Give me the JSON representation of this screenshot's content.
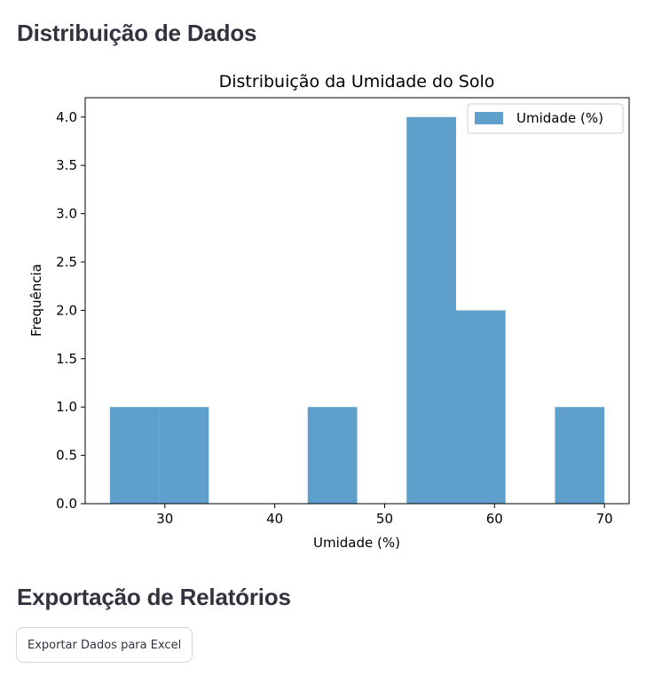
{
  "page": {
    "section_distribution_title": "Distribuição de Dados",
    "section_export_title": "Exportação de Relatórios",
    "export_button_label": "Exportar Dados para Excel"
  },
  "colors": {
    "bar": "#5f9fcb",
    "text": "#31333f"
  },
  "chart_data": {
    "type": "bar",
    "title": "Distribuição da Umidade do Solo",
    "xlabel": "Umidade (%)",
    "ylabel": "Frequência",
    "legend": [
      "Umidade (%)"
    ],
    "legend_position": "top-right",
    "grid": false,
    "xlim": [
      22.75,
      72.25
    ],
    "ylim": [
      0,
      4.2
    ],
    "xticks": [
      30,
      40,
      50,
      60,
      70
    ],
    "yticks": [
      0.0,
      0.5,
      1.0,
      1.5,
      2.0,
      2.5,
      3.0,
      3.5,
      4.0
    ],
    "series": [
      {
        "name": "Umidade (%)",
        "bins": [
          {
            "x0": 25.0,
            "x1": 29.5,
            "count": 1
          },
          {
            "x0": 29.5,
            "x1": 34.0,
            "count": 1
          },
          {
            "x0": 34.0,
            "x1": 38.5,
            "count": 0
          },
          {
            "x0": 38.5,
            "x1": 43.0,
            "count": 0
          },
          {
            "x0": 43.0,
            "x1": 47.5,
            "count": 1
          },
          {
            "x0": 47.5,
            "x1": 52.0,
            "count": 0
          },
          {
            "x0": 52.0,
            "x1": 56.5,
            "count": 4
          },
          {
            "x0": 56.5,
            "x1": 61.0,
            "count": 2
          },
          {
            "x0": 61.0,
            "x1": 65.5,
            "count": 0
          },
          {
            "x0": 65.5,
            "x1": 70.0,
            "count": 1
          }
        ]
      }
    ]
  }
}
